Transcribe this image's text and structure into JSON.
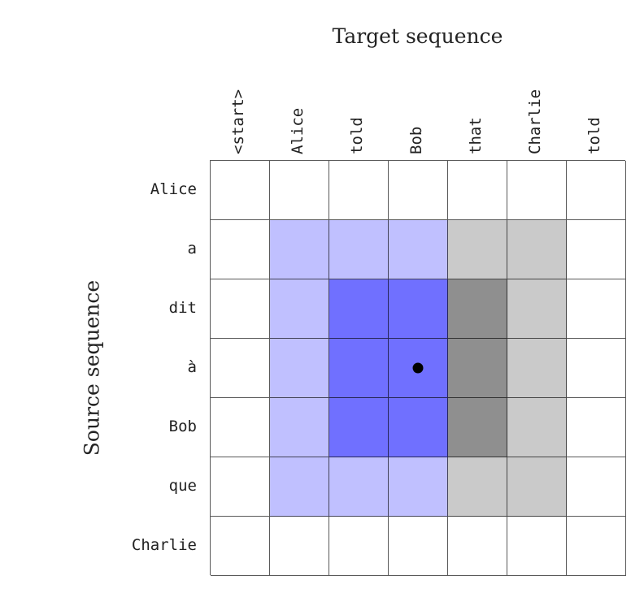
{
  "titles": {
    "target": "Target sequence",
    "source": "Source sequence"
  },
  "target_tokens": [
    "<start>",
    "Alice",
    "told",
    "Bob",
    "that",
    "Charlie",
    "told"
  ],
  "source_tokens": [
    "Alice",
    "a",
    "dit",
    "à",
    "Bob",
    "que",
    "Charlie"
  ],
  "colors": {
    "W": "#ffffff",
    "LB": "#c0c0ff",
    "DB": "#7070ff",
    "LG": "#cacaca",
    "DG": "#8f8f8f"
  },
  "matrix": [
    [
      "W",
      "W",
      "W",
      "W",
      "W",
      "W",
      "W"
    ],
    [
      "W",
      "LB",
      "LB",
      "LB",
      "LG",
      "LG",
      "W"
    ],
    [
      "W",
      "LB",
      "DB",
      "DB",
      "DG",
      "LG",
      "W"
    ],
    [
      "W",
      "LB",
      "DB",
      "DB",
      "DG",
      "LG",
      "W"
    ],
    [
      "W",
      "LB",
      "DB",
      "DB",
      "DG",
      "LG",
      "W"
    ],
    [
      "W",
      "LB",
      "LB",
      "LB",
      "LG",
      "LG",
      "W"
    ],
    [
      "W",
      "W",
      "W",
      "W",
      "W",
      "W",
      "W"
    ]
  ],
  "marker": {
    "row": 3,
    "col": 3,
    "shape": "filled-circle"
  },
  "chart_data": {
    "type": "heatmap",
    "title": "",
    "xlabel": "Target sequence",
    "ylabel": "Source sequence",
    "x": [
      "<start>",
      "Alice",
      "told",
      "Bob",
      "that",
      "Charlie",
      "told"
    ],
    "y": [
      "Alice",
      "a",
      "dit",
      "à",
      "Bob",
      "que",
      "Charlie"
    ],
    "values": [
      [
        0,
        0,
        0,
        0,
        0,
        0,
        0
      ],
      [
        0,
        1,
        1,
        1,
        1,
        1,
        0
      ],
      [
        0,
        1,
        2,
        2,
        2,
        1,
        0
      ],
      [
        0,
        1,
        2,
        2,
        2,
        1,
        0
      ],
      [
        0,
        1,
        2,
        2,
        2,
        1,
        0
      ],
      [
        0,
        1,
        1,
        1,
        1,
        1,
        0
      ],
      [
        0,
        0,
        0,
        0,
        0,
        0,
        0
      ]
    ],
    "value_legend": {
      "0": "white (none)",
      "1": "light shade (blue for cols 1-3, gray for cols 4-5)",
      "2": "dark shade (blue for cols 2-3, gray for col 4)"
    },
    "annotations": [
      {
        "type": "dot",
        "row": "à",
        "col": "Bob"
      }
    ],
    "grid": true
  }
}
